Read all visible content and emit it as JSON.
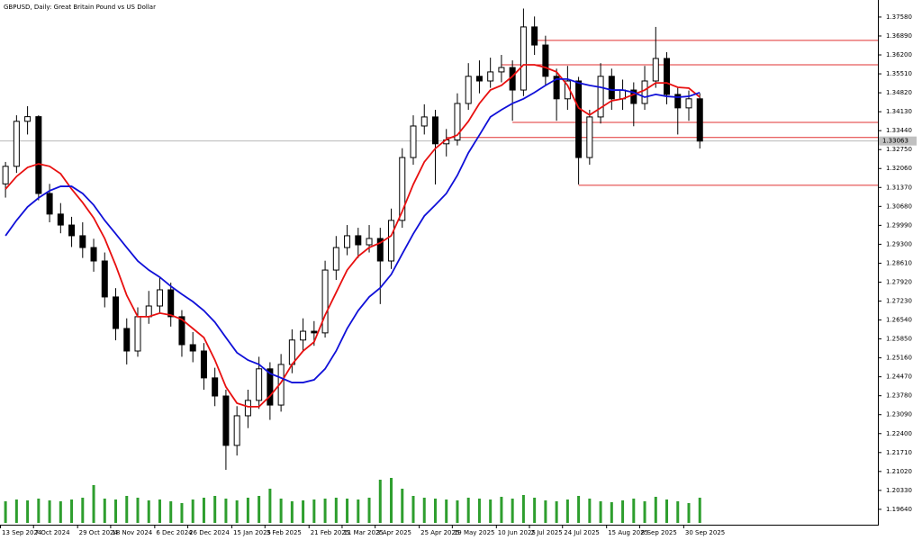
{
  "chart_data": {
    "type": "candlestick",
    "title": "GBPUSD, Daily:  Great Britain Pound vs US Dollar",
    "categories": [
      "13 Sep 2024",
      null,
      null,
      "7 Oct 2024",
      null,
      null,
      null,
      "29 Oct 2024",
      null,
      null,
      "18 Nov 2024",
      null,
      null,
      null,
      "6 Dec 2024",
      null,
      null,
      "26 Dec 2024",
      null,
      null,
      null,
      "15 Jan 2025",
      null,
      null,
      "3 Feb 2025",
      null,
      null,
      null,
      "21 Feb 2025",
      null,
      null,
      "11 Mar 2025",
      null,
      null,
      "3 Apr 2025",
      null,
      null,
      null,
      "25 Apr 2025",
      null,
      null,
      "19 May 2025",
      null,
      null,
      null,
      "10 Jun 2025",
      null,
      null,
      "2 Jul 2025",
      null,
      null,
      "24 Jul 2025",
      null,
      null,
      null,
      "15 Aug 2025",
      null,
      null,
      "8 Sep 2025",
      null,
      null,
      null,
      "30 Sep 2025",
      null
    ],
    "open": [
      1.315,
      1.3214,
      1.3378,
      1.3395,
      1.3115,
      1.304,
      1.3,
      1.2961,
      1.2918,
      1.2869,
      1.2738,
      1.2623,
      1.2541,
      1.2666,
      1.2705,
      1.2764,
      1.2666,
      1.2564,
      1.2541,
      1.2443,
      1.2377,
      1.2197,
      1.2305,
      1.2361,
      1.2476,
      1.2344,
      1.2492,
      1.2581,
      1.2613,
      1.2607,
      1.2836,
      1.2918,
      1.2961,
      1.2928,
      1.2951,
      1.2869,
      1.3017,
      1.3246,
      1.3361,
      1.3394,
      1.3296,
      1.331,
      1.3443,
      1.3542,
      1.3525,
      1.3558,
      1.3574,
      1.3492,
      1.3722,
      1.3656,
      1.3542,
      1.346,
      1.3525,
      1.3246,
      1.3394,
      1.3542,
      1.346,
      1.3492,
      1.3443,
      1.3525,
      1.3607,
      1.3476,
      1.3427,
      1.346
    ],
    "high": [
      1.323,
      1.34,
      1.3433,
      1.34,
      1.315,
      1.308,
      1.303,
      1.301,
      1.295,
      1.29,
      1.277,
      1.266,
      1.27,
      1.276,
      1.281,
      1.279,
      1.269,
      1.261,
      1.257,
      1.248,
      1.24,
      1.234,
      1.24,
      1.252,
      1.25,
      1.253,
      1.262,
      1.266,
      1.265,
      1.287,
      1.296,
      1.3,
      1.299,
      1.3,
      1.299,
      1.306,
      1.328,
      1.34,
      1.344,
      1.342,
      1.335,
      1.348,
      1.359,
      1.36,
      1.361,
      1.362,
      1.36,
      1.3789,
      1.376,
      1.369,
      1.357,
      1.358,
      1.354,
      1.342,
      1.359,
      1.357,
      1.353,
      1.352,
      1.358,
      1.3722,
      1.363,
      1.35,
      1.349,
      1.348
    ],
    "low": [
      1.31,
      1.319,
      1.333,
      1.309,
      1.301,
      1.297,
      1.292,
      1.288,
      1.283,
      1.27,
      1.258,
      1.2492,
      1.252,
      1.264,
      1.268,
      1.263,
      1.252,
      1.25,
      1.24,
      1.234,
      1.2108,
      1.216,
      1.226,
      1.233,
      1.229,
      1.232,
      1.246,
      1.254,
      1.256,
      1.259,
      1.28,
      1.289,
      1.288,
      1.29,
      1.2712,
      1.284,
      1.299,
      1.322,
      1.333,
      1.3148,
      1.325,
      1.329,
      1.342,
      1.348,
      1.35,
      1.352,
      1.338,
      1.347,
      1.362,
      1.351,
      1.338,
      1.342,
      1.3148,
      1.322,
      1.337,
      1.342,
      1.342,
      1.336,
      1.342,
      1.35,
      1.344,
      1.333,
      1.338,
      1.3279
    ],
    "close": [
      1.3214,
      1.3378,
      1.3395,
      1.3115,
      1.304,
      1.3,
      1.2961,
      1.2918,
      1.2869,
      1.2738,
      1.2623,
      1.2541,
      1.2666,
      1.2705,
      1.2764,
      1.2666,
      1.2564,
      1.2541,
      1.2443,
      1.2377,
      1.2197,
      1.2305,
      1.2361,
      1.2476,
      1.2344,
      1.2492,
      1.2581,
      1.2613,
      1.2607,
      1.2836,
      1.2918,
      1.2961,
      1.2928,
      1.2951,
      1.2869,
      1.3017,
      1.3246,
      1.3361,
      1.3394,
      1.3296,
      1.331,
      1.3443,
      1.3542,
      1.3525,
      1.3558,
      1.3574,
      1.3492,
      1.3722,
      1.3656,
      1.3542,
      1.346,
      1.3525,
      1.3246,
      1.3394,
      1.3542,
      1.346,
      1.3492,
      1.3443,
      1.3525,
      1.3607,
      1.3476,
      1.3427,
      1.346,
      1.3306
    ],
    "volume": [
      24,
      26,
      25,
      27,
      25,
      24,
      26,
      28,
      42,
      27,
      26,
      30,
      28,
      25,
      26,
      24,
      22,
      26,
      28,
      30,
      27,
      25,
      28,
      30,
      38,
      27,
      24,
      25,
      26,
      27,
      28,
      27,
      26,
      28,
      48,
      50,
      38,
      30,
      28,
      27,
      26,
      25,
      28,
      27,
      26,
      29,
      27,
      31,
      28,
      25,
      24,
      26,
      30,
      27,
      24,
      23,
      25,
      27,
      24,
      29,
      26,
      24,
      22,
      28
    ],
    "volume_color": "#2e9e2e",
    "moving_averages": [
      {
        "color": "#e81010",
        "values": [
          1.3131,
          1.3177,
          1.321,
          1.3223,
          1.3214,
          1.3187,
          1.3131,
          1.3082,
          1.3026,
          1.2951,
          1.2853,
          1.2744,
          1.2666,
          1.2666,
          1.2679,
          1.2672,
          1.2656,
          1.2623,
          1.259,
          1.2508,
          1.241,
          1.2351,
          1.2338,
          1.2338,
          1.2377,
          1.2426,
          1.2492,
          1.2541,
          1.2574,
          1.2672,
          1.2754,
          1.2836,
          1.2886,
          1.2918,
          1.2935,
          1.2961,
          1.305,
          1.3148,
          1.323,
          1.3279,
          1.3312,
          1.3328,
          1.3378,
          1.3443,
          1.3492,
          1.3509,
          1.3542,
          1.3584,
          1.3584,
          1.3574,
          1.3558,
          1.3509,
          1.3427,
          1.3401,
          1.3427,
          1.3453,
          1.346,
          1.3476,
          1.3492,
          1.3518,
          1.3518,
          1.3502,
          1.3499,
          1.3466
        ]
      },
      {
        "color": "#1010d8",
        "values": [
          1.2961,
          1.3017,
          1.3066,
          1.3099,
          1.3125,
          1.3141,
          1.3141,
          1.3115,
          1.3073,
          1.3017,
          1.2968,
          1.2918,
          1.2869,
          1.2836,
          1.281,
          1.2777,
          1.2748,
          1.2721,
          1.2688,
          1.2646,
          1.259,
          1.2535,
          1.2508,
          1.2492,
          1.2459,
          1.2443,
          1.2426,
          1.2426,
          1.2436,
          1.2476,
          1.2541,
          1.2623,
          1.2688,
          1.2738,
          1.2771,
          1.282,
          1.2895,
          1.2968,
          1.3033,
          1.3073,
          1.3115,
          1.3181,
          1.3263,
          1.3328,
          1.3394,
          1.342,
          1.3443,
          1.346,
          1.3483,
          1.3509,
          1.3532,
          1.3532,
          1.3518,
          1.3509,
          1.3502,
          1.3492,
          1.3492,
          1.3483,
          1.3466,
          1.3476,
          1.3469,
          1.3466,
          1.3469,
          1.3483
        ]
      }
    ],
    "levels": [
      {
        "value": 1.3673,
        "start": 48
      },
      {
        "value": 1.3584,
        "start": 45
      },
      {
        "value": 1.3374,
        "start": 46
      },
      {
        "value": 1.3319,
        "start": 40
      },
      {
        "value": 1.3145,
        "start": 52
      }
    ],
    "level_color": "#e03030",
    "bid": {
      "value": 1.33063,
      "label": "1.33063"
    },
    "ylim": [
      1.1908,
      1.3807
    ],
    "yticks": [
      {
        "value": 1.3758,
        "label": "1.37580"
      },
      {
        "value": 1.3689,
        "label": "1.36890"
      },
      {
        "value": 1.362,
        "label": "1.36200"
      },
      {
        "value": 1.3551,
        "label": "1.35510"
      },
      {
        "value": 1.3482,
        "label": "1.34820"
      },
      {
        "value": 1.3413,
        "label": "1.34130"
      },
      {
        "value": 1.3344,
        "label": "1.33440"
      },
      {
        "value": 1.3275,
        "label": "1.32750"
      },
      {
        "value": 1.3206,
        "label": "1.32060"
      },
      {
        "value": 1.3137,
        "label": "1.31370"
      },
      {
        "value": 1.3068,
        "label": "1.30680"
      },
      {
        "value": 1.2999,
        "label": "1.29990"
      },
      {
        "value": 1.293,
        "label": "1.29300"
      },
      {
        "value": 1.2861,
        "label": "1.28610"
      },
      {
        "value": 1.2792,
        "label": "1.27920"
      },
      {
        "value": 1.2723,
        "label": "1.27230"
      },
      {
        "value": 1.2654,
        "label": "1.26540"
      },
      {
        "value": 1.2585,
        "label": "1.25850"
      },
      {
        "value": 1.2516,
        "label": "1.25160"
      },
      {
        "value": 1.2447,
        "label": "1.24470"
      },
      {
        "value": 1.2378,
        "label": "1.23780"
      },
      {
        "value": 1.2309,
        "label": "1.23090"
      },
      {
        "value": 1.224,
        "label": "1.22400"
      },
      {
        "value": 1.2171,
        "label": "1.21710"
      },
      {
        "value": 1.2102,
        "label": "1.21020"
      },
      {
        "value": 1.2033,
        "label": "1.20330"
      },
      {
        "value": 1.1964,
        "label": "1.19640"
      }
    ]
  }
}
